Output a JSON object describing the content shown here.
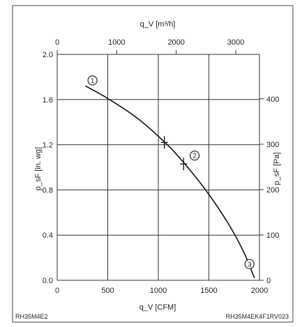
{
  "chart_data": {
    "type": "line",
    "axes": {
      "bottom": {
        "label": "q_V [CFM]",
        "ticks": [
          0,
          500,
          1000,
          1500,
          2000
        ],
        "range": [
          0,
          2000
        ]
      },
      "top": {
        "label": "q_V [m³/h]",
        "ticks": [
          0,
          1000,
          2000,
          3000
        ],
        "range": [
          0,
          3398
        ]
      },
      "left": {
        "label": "p_sF [in. wg]",
        "ticks": [
          "0.0",
          "0.4",
          "0.8",
          "1.2",
          "1.6",
          "2.0"
        ],
        "range": [
          0,
          2.0
        ]
      },
      "right": {
        "label": "p_sF [Pa]",
        "ticks": [
          0,
          100,
          200,
          300,
          400
        ],
        "range": [
          0,
          498
        ]
      }
    },
    "grid": true,
    "series": [
      {
        "x": [
          280,
          500,
          800,
          1100,
          1300,
          1500,
          1700,
          1850,
          1950
        ],
        "y": [
          1.72,
          1.61,
          1.43,
          1.19,
          0.99,
          0.76,
          0.49,
          0.24,
          0.02
        ]
      }
    ],
    "markers": [
      {
        "label": "1",
        "x": 280,
        "y": 1.72
      },
      {
        "label": "2",
        "x": 1290,
        "y": 1.03
      },
      {
        "label": "3",
        "x": 1950,
        "y": 0.02
      }
    ],
    "operating_points": [
      {
        "x": 1060,
        "y": 1.22
      },
      {
        "x": 1250,
        "y": 1.03
      }
    ],
    "footer_left": "RH35M4E2",
    "footer_right": "RH35M4EK4F1RV023"
  }
}
